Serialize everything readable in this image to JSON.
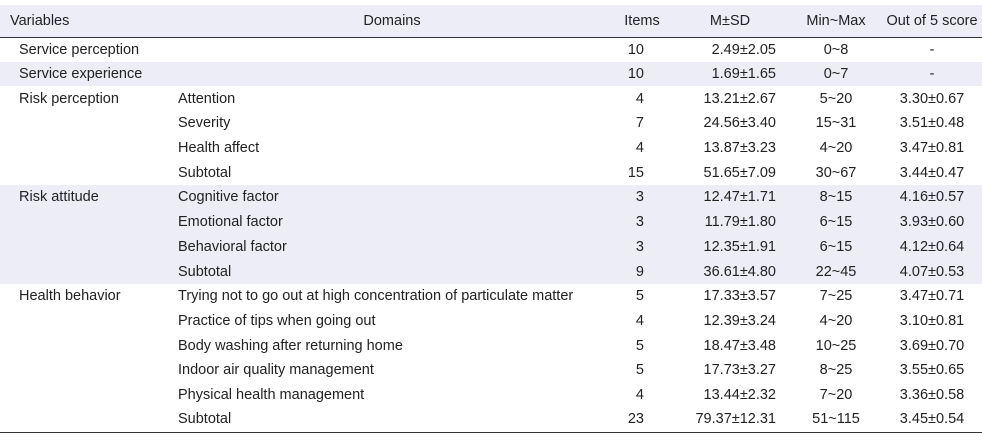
{
  "headers": {
    "variables": "Variables",
    "domains": "Domains",
    "items": "Items",
    "msd": "M±SD",
    "minmax": "Min~Max",
    "score": "Out of 5 score"
  },
  "rows": [
    {
      "variable": "Service perception",
      "domain": "",
      "items": "10",
      "msd": "2.49±2.05",
      "minmax": "0~8",
      "score": "-"
    },
    {
      "variable": "Service experience",
      "domain": "",
      "items": "10",
      "msd": "1.69±1.65",
      "minmax": "0~7",
      "score": "-"
    },
    {
      "variable": "Risk perception",
      "domain": "Attention",
      "items": "4",
      "msd": "13.21±2.67",
      "minmax": "5~20",
      "score": "3.30±0.67"
    },
    {
      "variable": "",
      "domain": "Severity",
      "items": "7",
      "msd": "24.56±3.40",
      "minmax": "15~31",
      "score": "3.51±0.48"
    },
    {
      "variable": "",
      "domain": "Health affect",
      "items": "4",
      "msd": "13.87±3.23",
      "minmax": "4~20",
      "score": "3.47±0.81"
    },
    {
      "variable": "",
      "domain": "Subtotal",
      "items": "15",
      "msd": "51.65±7.09",
      "minmax": "30~67",
      "score": "3.44±0.47"
    },
    {
      "variable": "Risk attitude",
      "domain": "Cognitive factor",
      "items": "3",
      "msd": "12.47±1.71",
      "minmax": "8~15",
      "score": "4.16±0.57"
    },
    {
      "variable": "",
      "domain": "Emotional factor",
      "items": "3",
      "msd": "11.79±1.80",
      "minmax": "6~15",
      "score": "3.93±0.60"
    },
    {
      "variable": "",
      "domain": "Behavioral factor",
      "items": "3",
      "msd": "12.35±1.91",
      "minmax": "6~15",
      "score": "4.12±0.64"
    },
    {
      "variable": "",
      "domain": "Subtotal",
      "items": "9",
      "msd": "36.61±4.80",
      "minmax": "22~45",
      "score": "4.07±0.53"
    },
    {
      "variable": "Health behavior",
      "domain": "Trying not to go out at high concentration of particulate matter",
      "items": "5",
      "msd": "17.33±3.57",
      "minmax": "7~25",
      "score": "3.47±0.71"
    },
    {
      "variable": "",
      "domain": "Practice of tips when going out",
      "items": "4",
      "msd": "12.39±3.24",
      "minmax": "4~20",
      "score": "3.10±0.81"
    },
    {
      "variable": "",
      "domain": "Body washing after returning home",
      "items": "5",
      "msd": "18.47±3.48",
      "minmax": "10~25",
      "score": "3.69±0.70"
    },
    {
      "variable": "",
      "domain": "Indoor air quality management",
      "items": "5",
      "msd": "17.73±3.27",
      "minmax": "8~25",
      "score": "3.55±0.65"
    },
    {
      "variable": "",
      "domain": "Physical health management",
      "items": "4",
      "msd": "13.44±2.32",
      "minmax": "7~20",
      "score": "3.36±0.58"
    },
    {
      "variable": "",
      "domain": "Subtotal",
      "items": "23",
      "msd": "79.37±12.31",
      "minmax": "51~115",
      "score": "3.45±0.54"
    }
  ]
}
